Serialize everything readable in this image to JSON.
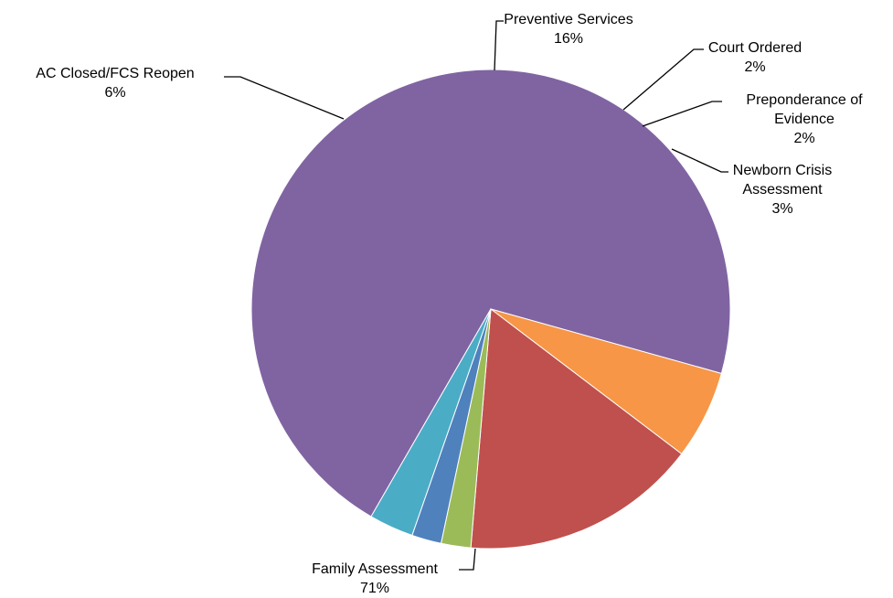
{
  "chart_data": {
    "type": "pie",
    "title": "",
    "legend": "none",
    "slices": [
      {
        "name": "Family Assessment",
        "value": 71,
        "label_lines": [
          "Family Assessment",
          "71%"
        ],
        "color": "#8064A2"
      },
      {
        "name": "AC Closed/FCS Reopen",
        "value": 6,
        "label_lines": [
          "AC Closed/FCS Reopen",
          "6%"
        ],
        "color": "#F79646"
      },
      {
        "name": "Preventive Services",
        "value": 16,
        "label_lines": [
          "Preventive Services",
          "16%"
        ],
        "color": "#C0504D"
      },
      {
        "name": "Court Ordered",
        "value": 2,
        "label_lines": [
          "Court Ordered",
          "2%"
        ],
        "color": "#9BBB59"
      },
      {
        "name": "Preponderance of Evidence",
        "value": 2,
        "label_lines": [
          "Preponderance of",
          "Evidence",
          "2%"
        ],
        "color": "#4F81BD"
      },
      {
        "name": "Newborn Crisis Assessment",
        "value": 3,
        "label_lines": [
          "Newborn Crisis",
          "Assessment",
          "3%"
        ],
        "color": "#4BACC6"
      }
    ]
  }
}
